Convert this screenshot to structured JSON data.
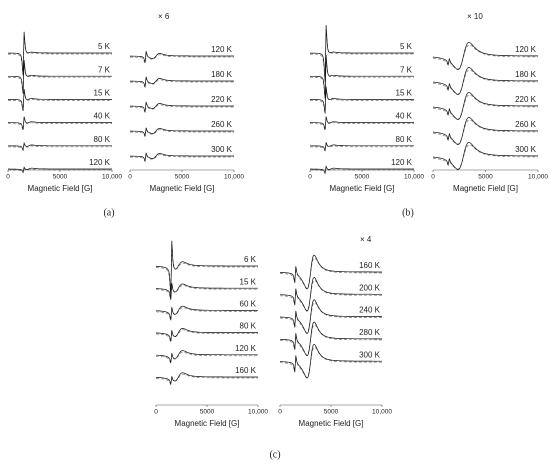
{
  "chart_data": [
    {
      "type": "line",
      "xlabel": "Magnetic Field [G]",
      "xlim": [
        0,
        10000
      ],
      "xticks": [
        0,
        5000,
        {
          "value": 10000,
          "label": "10,000"
        }
      ],
      "series": [
        {
          "name": "5 K"
        },
        {
          "name": "7 K"
        },
        {
          "name": "15 K"
        },
        {
          "name": "40 K"
        },
        {
          "name": "80 K"
        },
        {
          "name": "120 K"
        }
      ]
    },
    {
      "type": "line",
      "xlabel": "Magnetic Field [G]",
      "xlim": [
        0,
        10000
      ],
      "xticks": [
        0,
        5000,
        {
          "value": 10000,
          "label": "10,000"
        }
      ],
      "multiplier": "× 6",
      "series": [
        {
          "name": "120 K"
        },
        {
          "name": "180 K"
        },
        {
          "name": "220 K"
        },
        {
          "name": "260 K"
        },
        {
          "name": "300 K"
        }
      ]
    },
    {
      "type": "line",
      "xlabel": "Magnetic Field [G]",
      "xlim": [
        0,
        10000
      ],
      "xticks": [
        0,
        5000,
        {
          "value": 10000,
          "label": "10,000"
        }
      ],
      "series": [
        {
          "name": "5 K"
        },
        {
          "name": "7 K"
        },
        {
          "name": "15 K"
        },
        {
          "name": "40 K"
        },
        {
          "name": "80 K"
        },
        {
          "name": "120 K"
        }
      ]
    },
    {
      "type": "line",
      "xlabel": "Magnetic Field [G]",
      "xlim": [
        0,
        10000
      ],
      "xticks": [
        0,
        5000,
        {
          "value": 10000,
          "label": "10,000"
        }
      ],
      "multiplier": "× 10",
      "series": [
        {
          "name": "120 K"
        },
        {
          "name": "180 K"
        },
        {
          "name": "220 K"
        },
        {
          "name": "260 K"
        },
        {
          "name": "300 K"
        }
      ]
    },
    {
      "type": "line",
      "xlabel": "Magnetic Field [G]",
      "xlim": [
        0,
        10000
      ],
      "xticks": [
        0,
        5000,
        {
          "value": 10000,
          "label": "10,000"
        }
      ],
      "series": [
        {
          "name": "6 K"
        },
        {
          "name": "15 K"
        },
        {
          "name": "60 K"
        },
        {
          "name": "80 K"
        },
        {
          "name": "120 K"
        },
        {
          "name": "160 K"
        }
      ]
    },
    {
      "type": "line",
      "xlabel": "Magnetic Field [G]",
      "xlim": [
        0,
        10000
      ],
      "xticks": [
        0,
        5000,
        {
          "value": 10000,
          "label": "10,000"
        }
      ],
      "multiplier": "× 4",
      "series": [
        {
          "name": "160 K"
        },
        {
          "name": "200 K"
        },
        {
          "name": "240 K"
        },
        {
          "name": "280 K"
        },
        {
          "name": "300 K"
        }
      ]
    }
  ],
  "subfigure_labels": [
    "(a)",
    "(b)",
    "(c)"
  ]
}
